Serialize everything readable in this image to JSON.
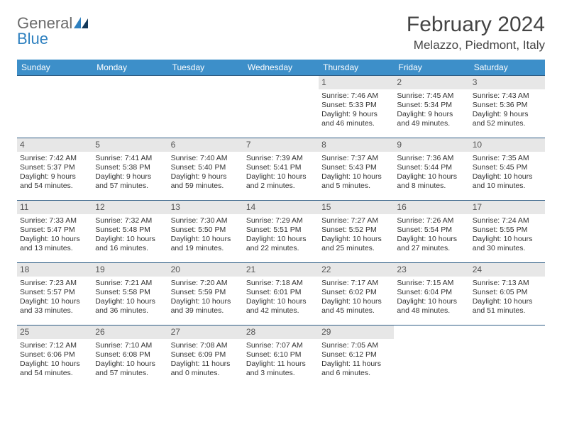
{
  "brand": {
    "part1": "General",
    "part2": "Blue"
  },
  "title": "February 2024",
  "location": "Melazzo, Piedmont, Italy",
  "colors": {
    "header_bg": "#3d8fc9",
    "header_text": "#ffffff",
    "row_border": "#2f5d85",
    "daynum_bg": "#e7e7e7",
    "logo_gray": "#6b6b6b",
    "logo_blue": "#2f81c0"
  },
  "day_headers": [
    "Sunday",
    "Monday",
    "Tuesday",
    "Wednesday",
    "Thursday",
    "Friday",
    "Saturday"
  ],
  "weeks": [
    [
      null,
      null,
      null,
      null,
      {
        "n": "1",
        "sr": "Sunrise: 7:46 AM",
        "ss": "Sunset: 5:33 PM",
        "d1": "Daylight: 9 hours",
        "d2": "and 46 minutes."
      },
      {
        "n": "2",
        "sr": "Sunrise: 7:45 AM",
        "ss": "Sunset: 5:34 PM",
        "d1": "Daylight: 9 hours",
        "d2": "and 49 minutes."
      },
      {
        "n": "3",
        "sr": "Sunrise: 7:43 AM",
        "ss": "Sunset: 5:36 PM",
        "d1": "Daylight: 9 hours",
        "d2": "and 52 minutes."
      }
    ],
    [
      {
        "n": "4",
        "sr": "Sunrise: 7:42 AM",
        "ss": "Sunset: 5:37 PM",
        "d1": "Daylight: 9 hours",
        "d2": "and 54 minutes."
      },
      {
        "n": "5",
        "sr": "Sunrise: 7:41 AM",
        "ss": "Sunset: 5:38 PM",
        "d1": "Daylight: 9 hours",
        "d2": "and 57 minutes."
      },
      {
        "n": "6",
        "sr": "Sunrise: 7:40 AM",
        "ss": "Sunset: 5:40 PM",
        "d1": "Daylight: 9 hours",
        "d2": "and 59 minutes."
      },
      {
        "n": "7",
        "sr": "Sunrise: 7:39 AM",
        "ss": "Sunset: 5:41 PM",
        "d1": "Daylight: 10 hours",
        "d2": "and 2 minutes."
      },
      {
        "n": "8",
        "sr": "Sunrise: 7:37 AM",
        "ss": "Sunset: 5:43 PM",
        "d1": "Daylight: 10 hours",
        "d2": "and 5 minutes."
      },
      {
        "n": "9",
        "sr": "Sunrise: 7:36 AM",
        "ss": "Sunset: 5:44 PM",
        "d1": "Daylight: 10 hours",
        "d2": "and 8 minutes."
      },
      {
        "n": "10",
        "sr": "Sunrise: 7:35 AM",
        "ss": "Sunset: 5:45 PM",
        "d1": "Daylight: 10 hours",
        "d2": "and 10 minutes."
      }
    ],
    [
      {
        "n": "11",
        "sr": "Sunrise: 7:33 AM",
        "ss": "Sunset: 5:47 PM",
        "d1": "Daylight: 10 hours",
        "d2": "and 13 minutes."
      },
      {
        "n": "12",
        "sr": "Sunrise: 7:32 AM",
        "ss": "Sunset: 5:48 PM",
        "d1": "Daylight: 10 hours",
        "d2": "and 16 minutes."
      },
      {
        "n": "13",
        "sr": "Sunrise: 7:30 AM",
        "ss": "Sunset: 5:50 PM",
        "d1": "Daylight: 10 hours",
        "d2": "and 19 minutes."
      },
      {
        "n": "14",
        "sr": "Sunrise: 7:29 AM",
        "ss": "Sunset: 5:51 PM",
        "d1": "Daylight: 10 hours",
        "d2": "and 22 minutes."
      },
      {
        "n": "15",
        "sr": "Sunrise: 7:27 AM",
        "ss": "Sunset: 5:52 PM",
        "d1": "Daylight: 10 hours",
        "d2": "and 25 minutes."
      },
      {
        "n": "16",
        "sr": "Sunrise: 7:26 AM",
        "ss": "Sunset: 5:54 PM",
        "d1": "Daylight: 10 hours",
        "d2": "and 27 minutes."
      },
      {
        "n": "17",
        "sr": "Sunrise: 7:24 AM",
        "ss": "Sunset: 5:55 PM",
        "d1": "Daylight: 10 hours",
        "d2": "and 30 minutes."
      }
    ],
    [
      {
        "n": "18",
        "sr": "Sunrise: 7:23 AM",
        "ss": "Sunset: 5:57 PM",
        "d1": "Daylight: 10 hours",
        "d2": "and 33 minutes."
      },
      {
        "n": "19",
        "sr": "Sunrise: 7:21 AM",
        "ss": "Sunset: 5:58 PM",
        "d1": "Daylight: 10 hours",
        "d2": "and 36 minutes."
      },
      {
        "n": "20",
        "sr": "Sunrise: 7:20 AM",
        "ss": "Sunset: 5:59 PM",
        "d1": "Daylight: 10 hours",
        "d2": "and 39 minutes."
      },
      {
        "n": "21",
        "sr": "Sunrise: 7:18 AM",
        "ss": "Sunset: 6:01 PM",
        "d1": "Daylight: 10 hours",
        "d2": "and 42 minutes."
      },
      {
        "n": "22",
        "sr": "Sunrise: 7:17 AM",
        "ss": "Sunset: 6:02 PM",
        "d1": "Daylight: 10 hours",
        "d2": "and 45 minutes."
      },
      {
        "n": "23",
        "sr": "Sunrise: 7:15 AM",
        "ss": "Sunset: 6:04 PM",
        "d1": "Daylight: 10 hours",
        "d2": "and 48 minutes."
      },
      {
        "n": "24",
        "sr": "Sunrise: 7:13 AM",
        "ss": "Sunset: 6:05 PM",
        "d1": "Daylight: 10 hours",
        "d2": "and 51 minutes."
      }
    ],
    [
      {
        "n": "25",
        "sr": "Sunrise: 7:12 AM",
        "ss": "Sunset: 6:06 PM",
        "d1": "Daylight: 10 hours",
        "d2": "and 54 minutes."
      },
      {
        "n": "26",
        "sr": "Sunrise: 7:10 AM",
        "ss": "Sunset: 6:08 PM",
        "d1": "Daylight: 10 hours",
        "d2": "and 57 minutes."
      },
      {
        "n": "27",
        "sr": "Sunrise: 7:08 AM",
        "ss": "Sunset: 6:09 PM",
        "d1": "Daylight: 11 hours",
        "d2": "and 0 minutes."
      },
      {
        "n": "28",
        "sr": "Sunrise: 7:07 AM",
        "ss": "Sunset: 6:10 PM",
        "d1": "Daylight: 11 hours",
        "d2": "and 3 minutes."
      },
      {
        "n": "29",
        "sr": "Sunrise: 7:05 AM",
        "ss": "Sunset: 6:12 PM",
        "d1": "Daylight: 11 hours",
        "d2": "and 6 minutes."
      },
      null,
      null
    ]
  ]
}
